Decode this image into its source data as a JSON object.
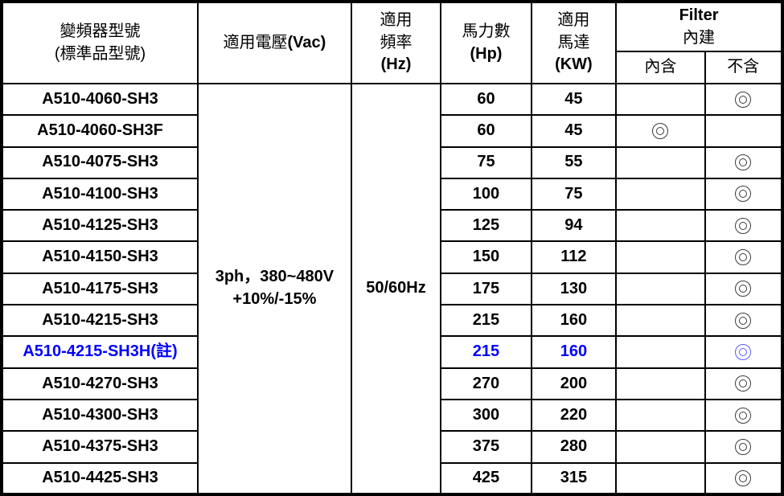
{
  "table": {
    "header": {
      "model_line1": "變頻器型號",
      "model_line2": "(標準品型號)",
      "voltage_cn": "適用電壓",
      "voltage_unit": "(Vac)",
      "freq_line1": "適用",
      "freq_line2": "頻率",
      "freq_unit": "(Hz)",
      "hp_line1": "馬力數",
      "hp_unit": "(Hp)",
      "motor_line1": "適用",
      "motor_line2": "馬達",
      "motor_unit": "(KW)",
      "filter_line1": "Filter",
      "filter_line2": "內建",
      "filter_included": "內含",
      "filter_excluded": "不含"
    },
    "merged": {
      "voltage_line1": "3ph，380~480V",
      "voltage_line2": "+10%/-15%",
      "frequency": "50/60Hz"
    },
    "symbols": {
      "bullseye": "◎"
    },
    "colors": {
      "highlight": "#0000ff",
      "border": "#000000",
      "text": "#000000"
    },
    "rows": [
      {
        "model": "A510-4060-SH3",
        "hp": "60",
        "kw": "45",
        "included": false,
        "excluded": true,
        "highlight": false
      },
      {
        "model": "A510-4060-SH3F",
        "hp": "60",
        "kw": "45",
        "included": true,
        "excluded": false,
        "highlight": false
      },
      {
        "model": "A510-4075-SH3",
        "hp": "75",
        "kw": "55",
        "included": false,
        "excluded": true,
        "highlight": false
      },
      {
        "model": "A510-4100-SH3",
        "hp": "100",
        "kw": "75",
        "included": false,
        "excluded": true,
        "highlight": false
      },
      {
        "model": "A510-4125-SH3",
        "hp": "125",
        "kw": "94",
        "included": false,
        "excluded": true,
        "highlight": false
      },
      {
        "model": "A510-4150-SH3",
        "hp": "150",
        "kw": "112",
        "included": false,
        "excluded": true,
        "highlight": false
      },
      {
        "model": "A510-4175-SH3",
        "hp": "175",
        "kw": "130",
        "included": false,
        "excluded": true,
        "highlight": false
      },
      {
        "model": "A510-4215-SH3",
        "hp": "215",
        "kw": "160",
        "included": false,
        "excluded": true,
        "highlight": false
      },
      {
        "model": "A510-4215-SH3H(註)",
        "hp": "215",
        "kw": "160",
        "included": false,
        "excluded": true,
        "highlight": true
      },
      {
        "model": "A510-4270-SH3",
        "hp": "270",
        "kw": "200",
        "included": false,
        "excluded": true,
        "highlight": false
      },
      {
        "model": "A510-4300-SH3",
        "hp": "300",
        "kw": "220",
        "included": false,
        "excluded": true,
        "highlight": false
      },
      {
        "model": "A510-4375-SH3",
        "hp": "375",
        "kw": "280",
        "included": false,
        "excluded": true,
        "highlight": false
      },
      {
        "model": "A510-4425-SH3",
        "hp": "425",
        "kw": "315",
        "included": false,
        "excluded": true,
        "highlight": false
      }
    ]
  }
}
